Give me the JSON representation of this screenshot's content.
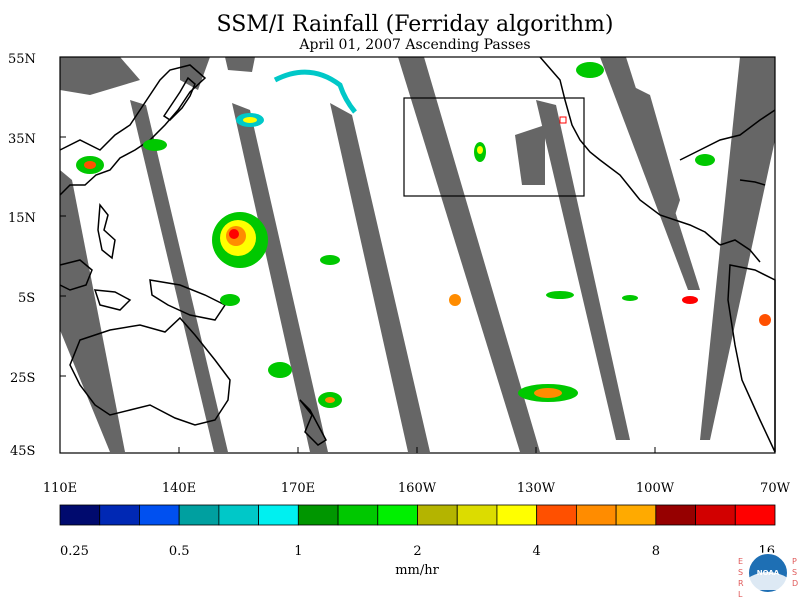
{
  "title": "SSM/I Rainfall (Ferriday algorithm)",
  "subtitle": "April 01, 2007  Ascending Passes",
  "lat_labels": [
    "55N",
    "35N",
    "15N",
    "5S",
    "25S",
    "45S"
  ],
  "lon_labels": [
    "110E",
    "140E",
    "170E",
    "160W",
    "130W",
    "100W",
    "70W"
  ],
  "colorbar": {
    "colors": [
      "#000a6e",
      "#0028b4",
      "#0050f0",
      "#00a0a0",
      "#00c8c8",
      "#00f0f0",
      "#009600",
      "#00c800",
      "#00f000",
      "#b4b400",
      "#dcdc00",
      "#ffff00",
      "#ff5000",
      "#ff8c00",
      "#ffaa00",
      "#960000",
      "#d20000",
      "#ff0000"
    ],
    "tick_labels": [
      "0.25",
      "0.5",
      "1",
      "2",
      "4",
      "8",
      "16"
    ],
    "units": "mm/hr"
  },
  "colors": {
    "missing": "#666666",
    "land_outline": "#000000"
  },
  "logo": {
    "text": "NOAA",
    "left_letters": "ESRL",
    "right_letters": "PSD"
  }
}
